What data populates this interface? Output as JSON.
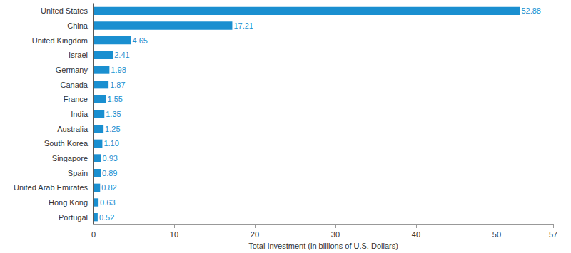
{
  "chart_data": {
    "type": "bar",
    "orientation": "horizontal",
    "x_label": "Total Investment (in billions of U.S. Dollars)",
    "categories": [
      "United States",
      "China",
      "United Kingdom",
      "Israel",
      "Germany",
      "Canada",
      "France",
      "India",
      "Australia",
      "South Korea",
      "Singapore",
      "Spain",
      "United Arab Emirates",
      "Hong Kong",
      "Portugal"
    ],
    "values": [
      52.88,
      17.21,
      4.65,
      2.41,
      1.98,
      1.87,
      1.55,
      1.35,
      1.25,
      1.1,
      0.93,
      0.89,
      0.82,
      0.63,
      0.52
    ],
    "value_labels": [
      "52.88",
      "17.21",
      "4.65",
      "2.41",
      "1.98",
      "1.87",
      "1.55",
      "1.35",
      "1.25",
      "1.10",
      "0.93",
      "0.89",
      "0.82",
      "0.63",
      "0.52"
    ],
    "color": "#1a8fd0",
    "xlim": [
      0,
      57
    ],
    "xticks": [
      0,
      10,
      20,
      30,
      40,
      50
    ],
    "grid": false,
    "data_labels": true
  }
}
